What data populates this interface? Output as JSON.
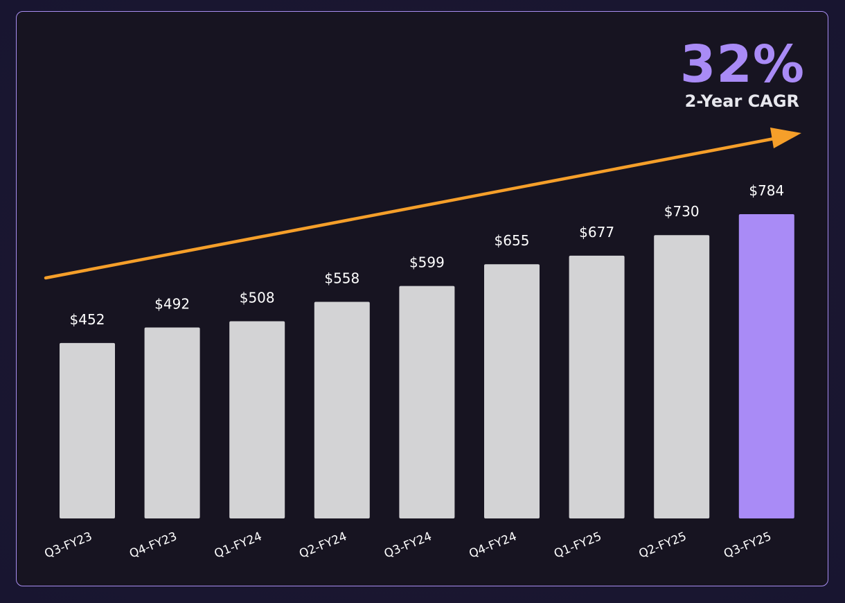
{
  "kpi": {
    "value": "32%",
    "label": "2-Year CAGR"
  },
  "colors": {
    "bar": "#d3d3d5",
    "highlight_bar": "#a98bf6",
    "trend_arrow": "#f59f2a",
    "panel_border": "#a98ef2"
  },
  "chart_data": {
    "type": "bar",
    "categories": [
      "Q3-FY23",
      "Q4-FY23",
      "Q1-FY24",
      "Q2-FY24",
      "Q3-FY24",
      "Q4-FY24",
      "Q1-FY25",
      "Q2-FY25",
      "Q3-FY25"
    ],
    "values": [
      452,
      492,
      508,
      558,
      599,
      655,
      677,
      730,
      784
    ],
    "value_labels": [
      "$452",
      "$492",
      "$508",
      "$558",
      "$599",
      "$655",
      "$677",
      "$730",
      "$784"
    ],
    "highlight_index": 8,
    "ylim": [
      0,
      784
    ],
    "grid": false,
    "trend_arrow": true,
    "title": "",
    "xlabel": "",
    "ylabel": ""
  }
}
